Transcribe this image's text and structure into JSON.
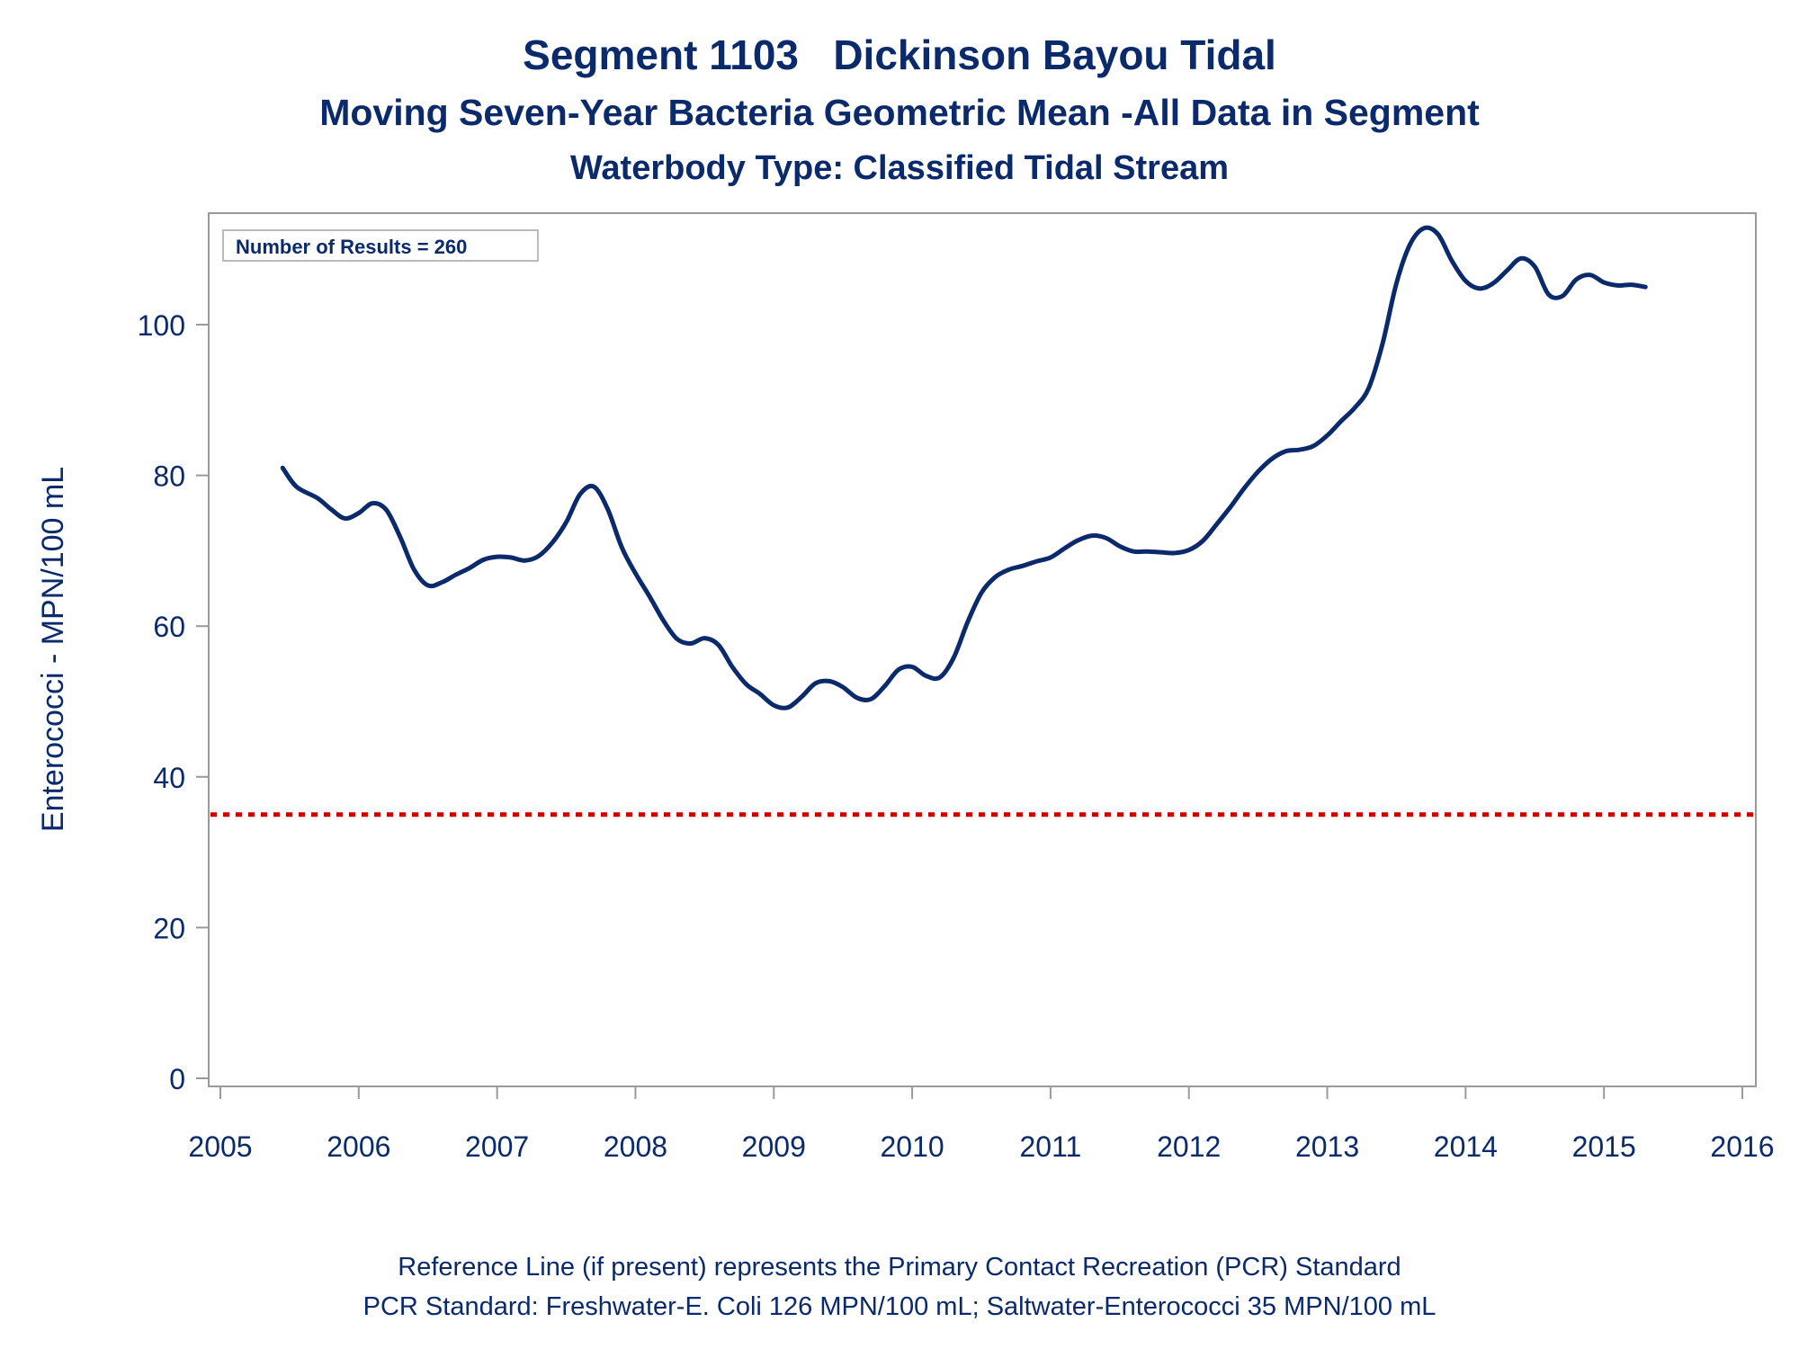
{
  "title": "Segment 1103   Dickinson Bayou Tidal",
  "subtitle": "Moving Seven-Year Bacteria Geometric Mean -All Data in Segment",
  "subtitle2": "Waterbody Type: Classified Tidal Stream",
  "footer_line1": "Reference Line (if present) represents the Primary Contact Recreation (PCR) Standard",
  "footer_line2": "PCR Standard: Freshwater-E. Coli 126 MPN/100 mL; Saltwater-Enterococci 35 MPN/100 mL",
  "colors": {
    "text": "#0a2a6b",
    "series": "#0a2a6b",
    "reference": "#cc0000",
    "frame": "#9a9a9a"
  },
  "chart_data": {
    "type": "line",
    "ylabel": "Enterococci - MPN/100 mL",
    "xlabel": "",
    "xlim": [
      2005,
      2016
    ],
    "ylim": [
      -1,
      115
    ],
    "xticks": [
      2005,
      2006,
      2007,
      2008,
      2009,
      2010,
      2011,
      2012,
      2013,
      2014,
      2015,
      2016
    ],
    "yticks": [
      0,
      20,
      40,
      60,
      80,
      100
    ],
    "legend_note": "Number of Results = 260",
    "reference_line": {
      "y": 35,
      "style": "dotted"
    },
    "grid": false,
    "series": [
      {
        "x": [
          2005.45,
          2005.55,
          2005.7,
          2005.8,
          2005.9,
          2006.0,
          2006.1,
          2006.2,
          2006.3,
          2006.4,
          2006.5,
          2006.6,
          2006.7,
          2006.8,
          2006.9,
          2007.0,
          2007.1,
          2007.2,
          2007.3,
          2007.4,
          2007.5,
          2007.6,
          2007.7,
          2007.8,
          2007.9,
          2008.0,
          2008.1,
          2008.2,
          2008.3,
          2008.4,
          2008.5,
          2008.6,
          2008.7,
          2008.8,
          2008.9,
          2009.0,
          2009.1,
          2009.2,
          2009.3,
          2009.4,
          2009.5,
          2009.6,
          2009.7,
          2009.8,
          2009.9,
          2010.0,
          2010.1,
          2010.2,
          2010.3,
          2010.4,
          2010.5,
          2010.6,
          2010.7,
          2010.8,
          2010.9,
          2011.0,
          2011.1,
          2011.2,
          2011.3,
          2011.4,
          2011.5,
          2011.6,
          2011.7,
          2011.8,
          2011.9,
          2012.0,
          2012.1,
          2012.2,
          2012.3,
          2012.4,
          2012.5,
          2012.6,
          2012.7,
          2012.8,
          2012.9,
          2013.0,
          2013.1,
          2013.2,
          2013.3,
          2013.4,
          2013.5,
          2013.6,
          2013.7,
          2013.8,
          2013.9,
          2014.0,
          2014.1,
          2014.2,
          2014.3,
          2014.4,
          2014.5,
          2014.6,
          2014.7,
          2014.8,
          2014.9,
          2015.0,
          2015.1,
          2015.2,
          2015.3
        ],
        "values": [
          81,
          78.5,
          77,
          75.5,
          74.3,
          75,
          76.3,
          75.4,
          71.8,
          67.5,
          65.4,
          65.8,
          66.8,
          67.7,
          68.8,
          69.2,
          69.1,
          68.7,
          69.3,
          71.1,
          73.8,
          77.5,
          78.5,
          75.5,
          70.5,
          67,
          64,
          60.8,
          58.3,
          57.7,
          58.4,
          57.5,
          54.6,
          52.3,
          51,
          49.5,
          49.2,
          50.6,
          52.4,
          52.7,
          51.9,
          50.5,
          50.3,
          52,
          54.2,
          54.6,
          53.4,
          53.2,
          55.8,
          60.5,
          64.4,
          66.5,
          67.5,
          68,
          68.6,
          69.1,
          70.3,
          71.4,
          72,
          71.7,
          70.6,
          69.9,
          69.9,
          69.8,
          69.7,
          70.1,
          71.3,
          73.5,
          75.8,
          78.3,
          80.5,
          82.2,
          83.2,
          83.4,
          83.9,
          85.3,
          87.2,
          89,
          91.6,
          97.5,
          105.5,
          110.7,
          112.8,
          112,
          108.5,
          105.8,
          104.8,
          105.5,
          107.2,
          108.8,
          107.7,
          104,
          103.8,
          106,
          106.6,
          105.6,
          105.2,
          105.3,
          105
        ]
      }
    ]
  }
}
